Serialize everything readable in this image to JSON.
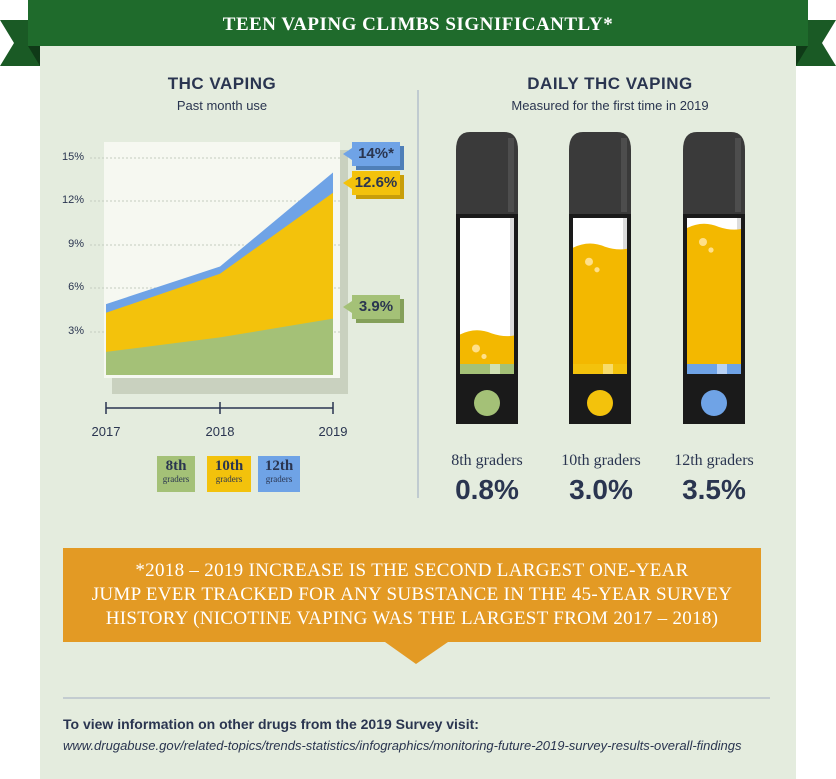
{
  "header": {
    "title": "TEEN VAPING CLIMBS SIGNIFICANTLY*"
  },
  "left_panel": {
    "title": "THC VAPING",
    "subtitle": "Past month use"
  },
  "right_panel": {
    "title": "DAILY THC VAPING",
    "subtitle": "Measured for the first time in 2019"
  },
  "legend": [
    {
      "grade": "8th",
      "sub": "graders",
      "color": "#a4c177"
    },
    {
      "grade": "10th",
      "sub": "graders",
      "color": "#f3c20c"
    },
    {
      "grade": "12th",
      "sub": "graders",
      "color": "#6fa3e6"
    }
  ],
  "end_labels": [
    "14%*",
    "12.6%",
    "3.9%"
  ],
  "pens": [
    {
      "label": "8th graders",
      "value": "0.8%",
      "color": "#a4c177",
      "fill_level": 0.8
    },
    {
      "label": "10th graders",
      "value": "3.0%",
      "color": "#f3c20c",
      "fill_level": 3.0
    },
    {
      "label": "12th graders",
      "value": "3.5%",
      "color": "#6fa3e6",
      "fill_level": 3.5
    }
  ],
  "banner": {
    "line1": "*2018 – 2019 INCREASE IS THE SECOND LARGEST ONE-YEAR",
    "line2": "JUMP EVER TRACKED FOR ANY SUBSTANCE IN THE 45-YEAR SURVEY",
    "line3": "HISTORY (NICOTINE VAPING WAS THE LARGEST FROM 2017 – 2018)"
  },
  "footer": {
    "lead": "To view information on other drugs from the 2019 Survey visit:",
    "url": "www.drugabuse.gov/related-topics/trends-statistics/infographics/monitoring-future-2019-survey-results-overall-findings"
  },
  "colors": {
    "green_ribbon": "#1f6b2c",
    "panel_bg": "#e4ecde",
    "orange": "#e39a24",
    "navy": "#2a3550"
  },
  "chart_data": {
    "type": "area",
    "x": [
      2017,
      2018,
      2019
    ],
    "yticks": [
      "15%",
      "12%",
      "9%",
      "6%",
      "3%"
    ],
    "ylim": [
      0,
      15
    ],
    "series": [
      {
        "name": "8th",
        "values": [
          1.6,
          2.6,
          3.9
        ]
      },
      {
        "name": "10th",
        "values": [
          4.3,
          7.0,
          12.6
        ]
      },
      {
        "name": "12th",
        "values": [
          4.9,
          7.5,
          14.0
        ]
      }
    ]
  }
}
